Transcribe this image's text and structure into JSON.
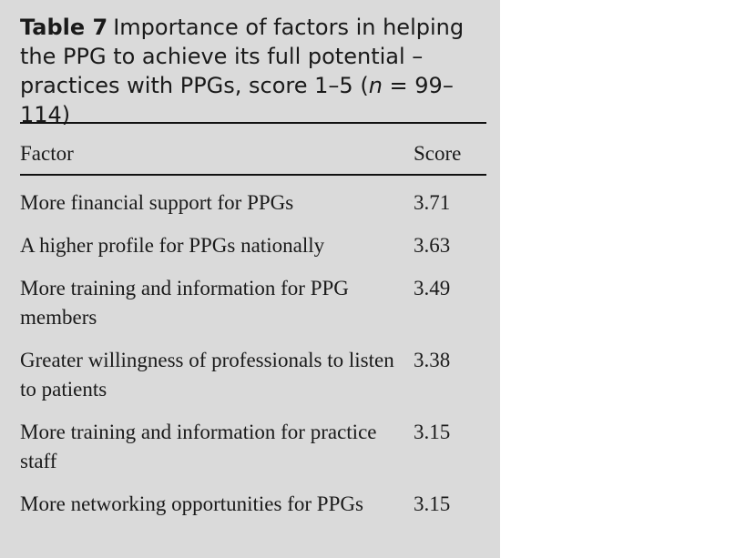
{
  "title": {
    "label": "Table 7",
    "text": "Importance of factors in helping the PPG to achieve its full potential – practices with PPGs, score 1–5 (",
    "italic": "n",
    "text_end": " = 99–114)"
  },
  "table": {
    "header": [
      "Factor",
      "Score"
    ],
    "rows": [
      [
        "More financial support for PPGs",
        3.71
      ],
      [
        "A higher profile for PPGs nationally",
        3.63
      ],
      [
        "More training and information for PPG members",
        3.49
      ],
      [
        "Greater willingness of professionals to listen to patients",
        3.38
      ],
      [
        "More training and information for practice staff",
        3.15
      ],
      [
        "More networking opportunities for PPGs",
        3.15
      ]
    ]
  }
}
